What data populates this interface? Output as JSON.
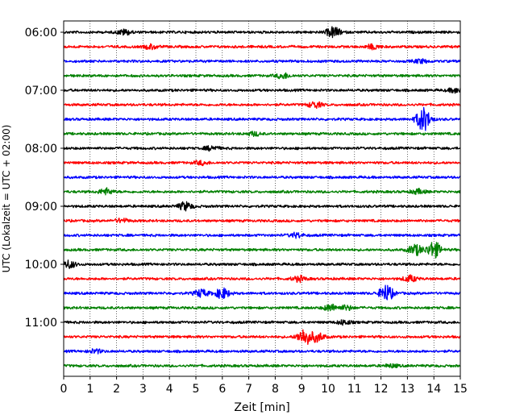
{
  "chart_data": {
    "type": "line",
    "title": "",
    "xlabel": "Zeit  [min]",
    "ylabel": "UTC (Lokalzeit = UTC + 02:00)",
    "xlim": [
      0,
      15
    ],
    "x_ticks": [
      0,
      1,
      2,
      3,
      4,
      5,
      6,
      7,
      8,
      9,
      10,
      11,
      12,
      13,
      14,
      15
    ],
    "y_tick_labels": [
      "06:00",
      "07:00",
      "08:00",
      "09:00",
      "10:00",
      "11:00"
    ],
    "y_tick_rows": [
      0,
      4,
      8,
      12,
      16,
      20
    ],
    "grid": "vertical dotted",
    "trace_interval_min": 15,
    "start_time": "06:00",
    "colors": [
      "#000000",
      "#ff0000",
      "#0000ff",
      "#008000"
    ],
    "traces": [
      {
        "start": "06:00",
        "color": "#000000",
        "events": [
          {
            "t": 10.2,
            "amp": 0.7
          },
          {
            "t": 2.3,
            "amp": 0.35
          }
        ]
      },
      {
        "start": "06:15",
        "color": "#ff0000",
        "events": [
          {
            "t": 3.3,
            "amp": 0.3
          },
          {
            "t": 11.7,
            "amp": 0.3
          }
        ]
      },
      {
        "start": "06:30",
        "color": "#0000ff",
        "events": [
          {
            "t": 13.5,
            "amp": 0.25
          }
        ]
      },
      {
        "start": "06:45",
        "color": "#008000",
        "events": [
          {
            "t": 8.3,
            "amp": 0.35
          }
        ]
      },
      {
        "start": "07:00",
        "color": "#000000",
        "events": [
          {
            "t": 14.8,
            "amp": 0.3
          }
        ]
      },
      {
        "start": "07:15",
        "color": "#ff0000",
        "events": [
          {
            "t": 9.5,
            "amp": 0.4
          }
        ]
      },
      {
        "start": "07:30",
        "color": "#0000ff",
        "events": [
          {
            "t": 13.6,
            "amp": 1.6
          }
        ]
      },
      {
        "start": "07:45",
        "color": "#008000",
        "events": [
          {
            "t": 7.2,
            "amp": 0.25
          }
        ]
      },
      {
        "start": "08:00",
        "color": "#000000",
        "events": [
          {
            "t": 5.6,
            "amp": 0.3
          }
        ]
      },
      {
        "start": "08:15",
        "color": "#ff0000",
        "events": [
          {
            "t": 5.2,
            "amp": 0.25
          }
        ]
      },
      {
        "start": "08:30",
        "color": "#0000ff",
        "events": []
      },
      {
        "start": "08:45",
        "color": "#008000",
        "events": [
          {
            "t": 1.6,
            "amp": 0.4
          },
          {
            "t": 13.4,
            "amp": 0.3
          }
        ]
      },
      {
        "start": "09:00",
        "color": "#000000",
        "events": [
          {
            "t": 4.6,
            "amp": 0.55
          }
        ]
      },
      {
        "start": "09:15",
        "color": "#ff0000",
        "events": [
          {
            "t": 2.2,
            "amp": 0.25
          }
        ]
      },
      {
        "start": "09:30",
        "color": "#0000ff",
        "events": [
          {
            "t": 8.8,
            "amp": 0.3
          }
        ]
      },
      {
        "start": "09:45",
        "color": "#008000",
        "events": [
          {
            "t": 13.3,
            "amp": 0.7
          },
          {
            "t": 14.0,
            "amp": 1.1
          }
        ]
      },
      {
        "start": "10:00",
        "color": "#000000",
        "events": [
          {
            "t": 0.2,
            "amp": 0.5
          }
        ]
      },
      {
        "start": "10:15",
        "color": "#ff0000",
        "events": [
          {
            "t": 13.1,
            "amp": 0.4
          },
          {
            "t": 8.9,
            "amp": 0.35
          }
        ]
      },
      {
        "start": "10:30",
        "color": "#0000ff",
        "events": [
          {
            "t": 6.0,
            "amp": 0.7
          },
          {
            "t": 12.2,
            "amp": 1.1
          },
          {
            "t": 5.2,
            "amp": 0.5
          }
        ]
      },
      {
        "start": "10:45",
        "color": "#008000",
        "events": [
          {
            "t": 10.1,
            "amp": 0.45
          },
          {
            "t": 10.7,
            "amp": 0.3
          }
        ]
      },
      {
        "start": "11:00",
        "color": "#000000",
        "events": [
          {
            "t": 10.6,
            "amp": 0.3
          }
        ]
      },
      {
        "start": "11:15",
        "color": "#ff0000",
        "events": [
          {
            "t": 9.1,
            "amp": 1.1
          },
          {
            "t": 9.6,
            "amp": 0.6
          }
        ]
      },
      {
        "start": "11:30",
        "color": "#0000ff",
        "events": [
          {
            "t": 1.2,
            "amp": 0.25
          }
        ]
      },
      {
        "start": "11:45",
        "color": "#008000",
        "events": [
          {
            "t": 12.4,
            "amp": 0.2
          }
        ]
      }
    ]
  }
}
